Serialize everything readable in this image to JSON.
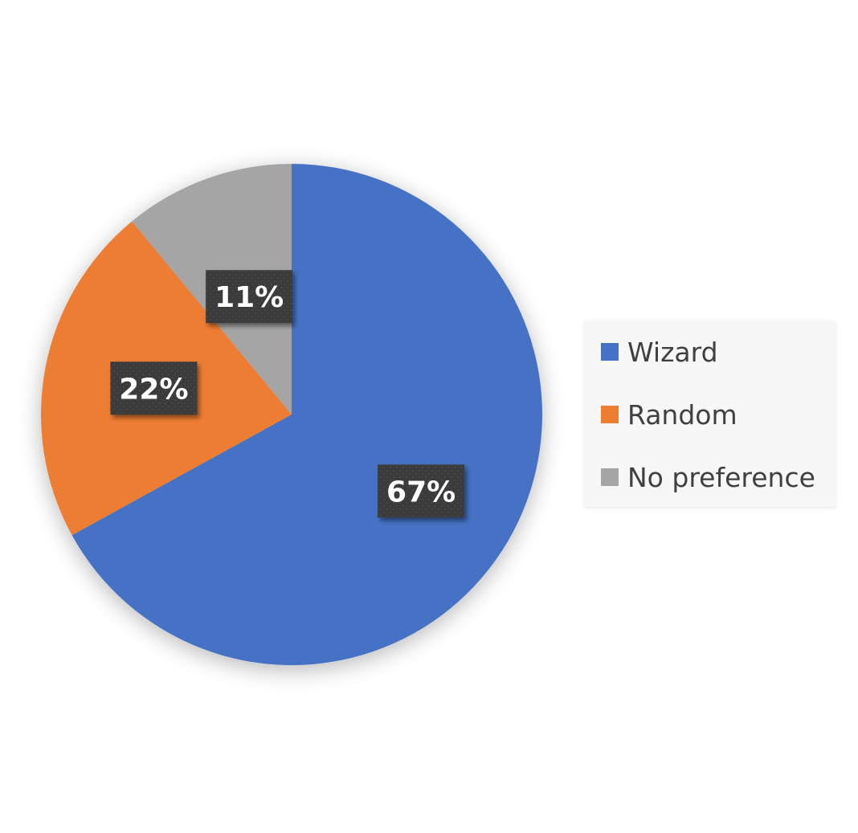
{
  "chart_data": {
    "type": "pie",
    "title": "",
    "categories": [
      "Wizard",
      "Random",
      "No preference"
    ],
    "values": [
      67,
      22,
      11
    ],
    "unit": "%",
    "data_labels": [
      "67%",
      "22%",
      "11%"
    ],
    "colors": [
      "#4472C4",
      "#ED7D31",
      "#A5A5A5"
    ],
    "start_angle": "12 o'clock",
    "direction": "clockwise",
    "legend": {
      "position": "right",
      "entries": [
        "Wizard",
        "Random",
        "No preference"
      ]
    }
  }
}
